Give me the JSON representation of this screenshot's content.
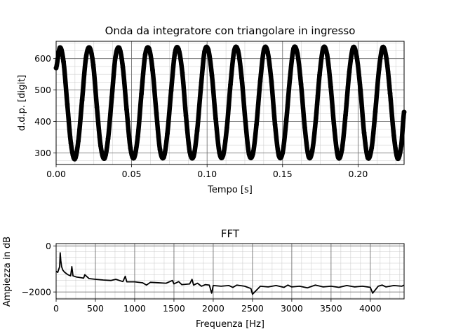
{
  "chart_data": [
    {
      "type": "scatter",
      "title": "Onda da integratore con triangolare in ingresso",
      "xlabel": "Tempo [s]",
      "ylabel": "d.d.p. [digit]",
      "xlim": [
        0.0,
        0.2305
      ],
      "ylim": [
        263,
        655
      ],
      "xticks": [
        0.0,
        0.05,
        0.1,
        0.15,
        0.2
      ],
      "xtick_labels": [
        "0.00",
        "0.05",
        "0.10",
        "0.15",
        "0.20"
      ],
      "yticks": [
        300,
        400,
        500,
        600
      ],
      "ytick_labels": [
        "300",
        "400",
        "500",
        "600"
      ],
      "grid": "major and minor",
      "marker": "filled circle",
      "color": "#000000",
      "series": [
        {
          "x": [
            0.0,
            0.0025,
            0.0049,
            0.0074,
            0.0098,
            0.0123,
            0.0147,
            0.0172,
            0.0197,
            0.0221,
            0.0246,
            0.027,
            0.0295,
            0.032,
            0.0344,
            0.0369,
            0.0393,
            0.0418,
            0.0442,
            0.0467,
            0.0492,
            0.0516,
            0.0541,
            0.0565,
            0.059,
            0.0615,
            0.0639,
            0.0664,
            0.0688,
            0.0713,
            0.0737,
            0.0762,
            0.0787,
            0.0811,
            0.0836,
            0.086,
            0.0885,
            0.091,
            0.0934,
            0.0959,
            0.0983,
            0.1008,
            0.1032,
            0.1057,
            0.1082,
            0.1106,
            0.1131,
            0.1155,
            0.118,
            0.1205,
            0.1229,
            0.1254,
            0.1278,
            0.1303,
            0.1327,
            0.1352,
            0.1377,
            0.1401,
            0.1426,
            0.145,
            0.1475,
            0.15,
            0.1524,
            0.1549,
            0.1573,
            0.1598,
            0.1622,
            0.1647,
            0.1672,
            0.1696,
            0.1721,
            0.1745,
            0.177,
            0.1795,
            0.1819,
            0.1844,
            0.1868,
            0.1893,
            0.1917,
            0.1942,
            0.1967,
            0.1991,
            0.2016,
            0.204,
            0.2065,
            0.209,
            0.2114,
            0.2139,
            0.2163,
            0.2188,
            0.2212,
            0.2237,
            0.2262,
            0.2286,
            0.2305
          ],
          "y": [
            570,
            635,
            590,
            455,
            330,
            280,
            338,
            468,
            600,
            635,
            580,
            445,
            322,
            282,
            345,
            478,
            605,
            634,
            572,
            438,
            316,
            284,
            352,
            488,
            612,
            632,
            563,
            428,
            310,
            286,
            362,
            498,
            618,
            630,
            555,
            418,
            304,
            288,
            370,
            508,
            622,
            628,
            546,
            409,
            300,
            292,
            380,
            518,
            626,
            625,
            538,
            400,
            296,
            296,
            390,
            528,
            629,
            621,
            528,
            390,
            292,
            300,
            400,
            538,
            632,
            617,
            519,
            381,
            289,
            305,
            410,
            548,
            634,
            612,
            510,
            372,
            286,
            310,
            420,
            557,
            635,
            606,
            500,
            364,
            284,
            316,
            430,
            566,
            636,
            600,
            490,
            356,
            282,
            322,
            430
          ]
        }
      ]
    },
    {
      "type": "line",
      "title": "FFT",
      "xlabel": "Frequenza [Hz]",
      "ylabel": "Ampiezza in dB",
      "xlim": [
        0,
        4430
      ],
      "ylim": [
        -2300,
        100
      ],
      "xticks": [
        0,
        500,
        1000,
        1500,
        2000,
        2500,
        3000,
        3500,
        4000
      ],
      "xtick_labels": [
        "0",
        "500",
        "1000",
        "1500",
        "2000",
        "2500",
        "3000",
        "3500",
        "4000"
      ],
      "yticks": [
        0,
        -2000
      ],
      "ytick_labels": [
        "0",
        "−2000"
      ],
      "grid": "major and minor",
      "color": "#000000",
      "series": [
        {
          "x": [
            0,
            20,
            45,
            52,
            60,
            70,
            85,
            110,
            150,
            185,
            200,
            215,
            260,
            320,
            350,
            365,
            420,
            500,
            600,
            700,
            760,
            850,
            880,
            900,
            1000,
            1100,
            1150,
            1200,
            1300,
            1400,
            1480,
            1500,
            1560,
            1600,
            1700,
            1730,
            1750,
            1800,
            1850,
            1900,
            1950,
            1980,
            2000,
            2100,
            2200,
            2250,
            2300,
            2400,
            2480,
            2500,
            2600,
            2700,
            2800,
            2900,
            2950,
            3000,
            3100,
            3200,
            3300,
            3400,
            3500,
            3600,
            3700,
            3800,
            3900,
            4000,
            4030,
            4100,
            4150,
            4200,
            4300,
            4400,
            4430
          ],
          "y": [
            -1100,
            -1150,
            -900,
            -300,
            -650,
            -900,
            -1050,
            -1150,
            -1250,
            -1300,
            -900,
            -1300,
            -1350,
            -1380,
            -1400,
            -1250,
            -1420,
            -1450,
            -1480,
            -1500,
            -1450,
            -1550,
            -1320,
            -1560,
            -1560,
            -1600,
            -1700,
            -1580,
            -1600,
            -1620,
            -1500,
            -1650,
            -1550,
            -1680,
            -1650,
            -1450,
            -1700,
            -1620,
            -1750,
            -1680,
            -1700,
            -2050,
            -1720,
            -1750,
            -1720,
            -1800,
            -1700,
            -1750,
            -1850,
            -2100,
            -1750,
            -1780,
            -1720,
            -1800,
            -1700,
            -1780,
            -1750,
            -1820,
            -1700,
            -1780,
            -1750,
            -1800,
            -1720,
            -1780,
            -1750,
            -1800,
            -2050,
            -1750,
            -1700,
            -1780,
            -1720,
            -1750,
            -1700
          ]
        }
      ]
    }
  ]
}
